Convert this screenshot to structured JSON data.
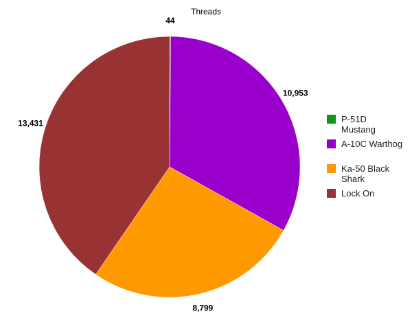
{
  "chart_data": {
    "type": "pie",
    "title": "Threads",
    "categories": [
      "P-51D Mustang",
      "A-10C Warthog",
      "Ka-50 Black Shark",
      "Lock On"
    ],
    "values": [
      44,
      10953,
      8799,
      13431
    ],
    "value_labels": [
      "44",
      "10,953",
      "8,799",
      "13,431"
    ],
    "colors": [
      "#109618",
      "#9900cc",
      "#ff9900",
      "#993333"
    ],
    "legend": "right"
  }
}
